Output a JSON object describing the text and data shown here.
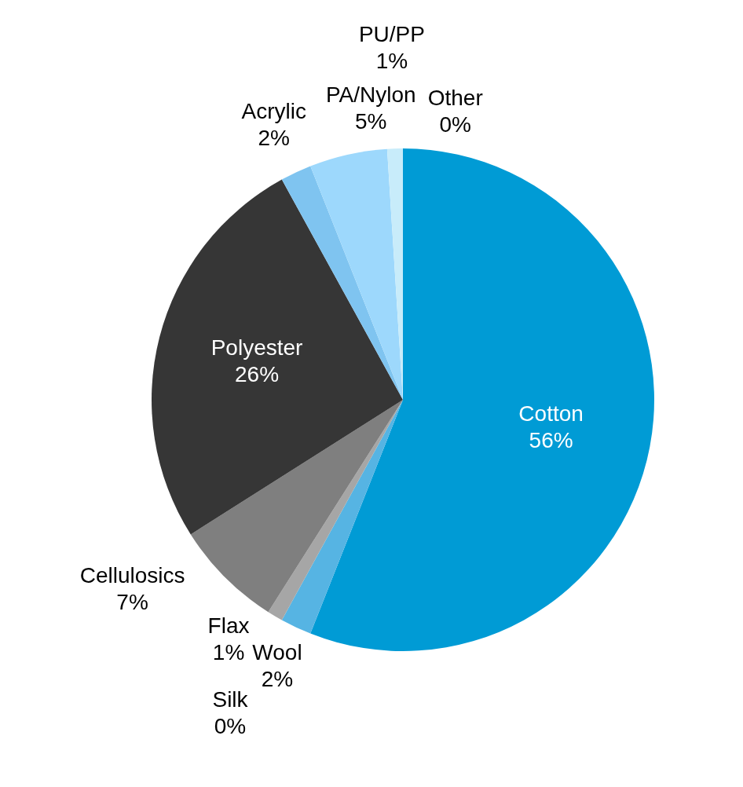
{
  "chart_data": {
    "type": "pie",
    "categories": [
      "Cotton",
      "Wool",
      "Silk",
      "Flax",
      "Cellulosics",
      "Polyester",
      "Acrylic",
      "PA/Nylon",
      "PU/PP",
      "Other"
    ],
    "values": [
      56,
      2,
      0,
      1,
      7,
      26,
      2,
      5,
      1,
      0
    ],
    "value_labels": [
      "56%",
      "2%",
      "0%",
      "1%",
      "7%",
      "26%",
      "2%",
      "5%",
      "1%",
      "0%"
    ],
    "colors": [
      "#009bd5",
      "#56b4e3",
      "#c0c0c0",
      "#a6a6a6",
      "#7f7f7f",
      "#363636",
      "#7fc4f0",
      "#9dd8fc",
      "#c8ecfa",
      "#e0f4fc"
    ]
  }
}
